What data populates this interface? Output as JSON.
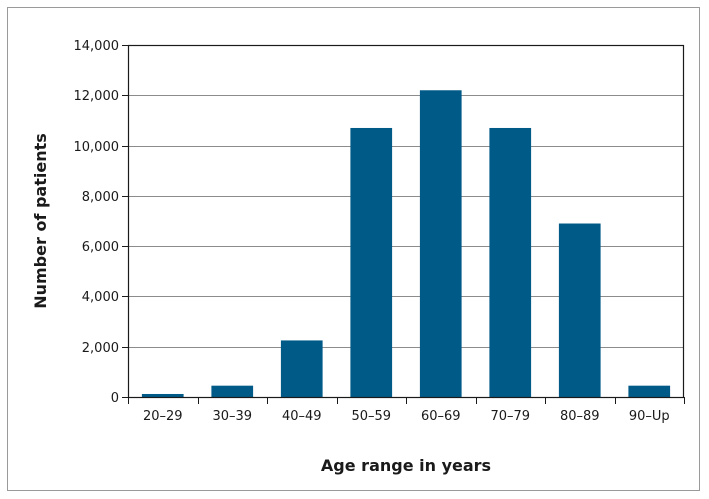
{
  "chart_data": {
    "type": "bar",
    "title": "",
    "xlabel": "Age range in years",
    "ylabel": "Number of patients",
    "categories": [
      "20–29",
      "30–39",
      "40–49",
      "50–59",
      "60–69",
      "70–79",
      "80–89",
      "90–Up"
    ],
    "values": [
      120,
      450,
      2250,
      10700,
      12200,
      10700,
      6900,
      450
    ],
    "ylim": [
      0,
      14000
    ],
    "yticks": [
      0,
      2000,
      4000,
      6000,
      8000,
      10000,
      12000,
      14000
    ],
    "ytick_labels": [
      "0",
      "2,000",
      "4,000",
      "6,000",
      "8,000",
      "10,000",
      "12,000",
      "14,000"
    ],
    "grid": true,
    "bar_color": "#005a87",
    "grid_color": "#8c8c8c"
  }
}
